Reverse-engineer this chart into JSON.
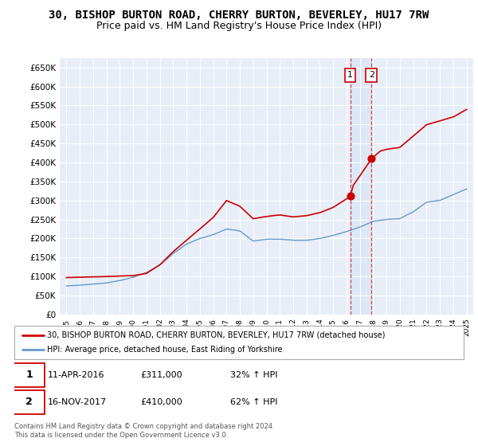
{
  "title": "30, BISHOP BURTON ROAD, CHERRY BURTON, BEVERLEY, HU17 7RW",
  "subtitle": "Price paid vs. HM Land Registry's House Price Index (HPI)",
  "ylim": [
    0,
    675000
  ],
  "yticks": [
    0,
    50000,
    100000,
    150000,
    200000,
    250000,
    300000,
    350000,
    400000,
    450000,
    500000,
    550000,
    600000,
    650000
  ],
  "xlim_start": 1994.5,
  "xlim_end": 2025.5,
  "red_line_color": "#cc0000",
  "blue_line_color": "#6699cc",
  "background_color": "#e8eef8",
  "shade_color": "#dce6f5",
  "sale1_x": 2016.278,
  "sale1_y": 311000,
  "sale1_label": "1",
  "sale1_date": "11-APR-2016",
  "sale1_price": "£311,000",
  "sale1_hpi": "32% ↑ HPI",
  "sale2_x": 2017.878,
  "sale2_y": 410000,
  "sale2_label": "2",
  "sale2_date": "16-NOV-2017",
  "sale2_price": "£410,000",
  "sale2_hpi": "62% ↑ HPI",
  "legend_red_label": "30, BISHOP BURTON ROAD, CHERRY BURTON, BEVERLEY, HU17 7RW (detached house)",
  "legend_blue_label": "HPI: Average price, detached house, East Riding of Yorkshire",
  "footer1": "Contains HM Land Registry data © Crown copyright and database right 2024.",
  "footer2": "This data is licensed under the Open Government Licence v3.0.",
  "title_fontsize": 10,
  "subtitle_fontsize": 9
}
